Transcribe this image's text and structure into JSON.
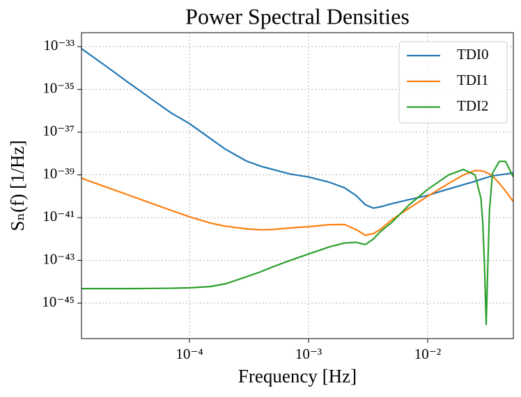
{
  "chart_data": {
    "type": "line",
    "title": "Power Spectral Densities",
    "x_label": "Frequency [Hz]",
    "y_label": "Sₙ(f) [1/Hz]",
    "x": [
      1.24e-05,
      2e-05,
      3e-05,
      5e-05,
      7e-05,
      0.0001,
      0.00015,
      0.0002,
      0.0003,
      0.0004,
      0.0005,
      0.0007,
      0.001,
      0.0015,
      0.002,
      0.0025,
      0.003,
      0.0035,
      0.004,
      0.005,
      0.007,
      0.01,
      0.015,
      0.02,
      0.025,
      0.028,
      0.029,
      0.03,
      0.031,
      0.032,
      0.033,
      0.035,
      0.04,
      0.045,
      0.0524
    ],
    "series": [
      {
        "name": "TDI0",
        "color": "#1f77b4",
        "values": [
          8e-34,
          1.2e-34,
          2.3e-35,
          3e-36,
          8e-37,
          2.5e-37,
          5e-38,
          1.6e-38,
          4.5e-39,
          2.5e-39,
          1.8e-39,
          1.1e-39,
          8e-40,
          4.5e-40,
          2.5e-40,
          1.1e-40,
          4e-41,
          2.8e-41,
          3.2e-41,
          4.5e-41,
          7e-41,
          1.1e-40,
          2.2e-40,
          3.5e-40,
          5e-40,
          6.2e-40,
          6.6e-40,
          7e-40,
          7.4e-40,
          7.8e-40,
          8.2e-40,
          9e-40,
          1e-39,
          1.1e-39,
          1.25e-39
        ]
      },
      {
        "name": "TDI1",
        "color": "#ff7f0e",
        "values": [
          7e-40,
          2.7e-40,
          1.2e-40,
          4.3e-41,
          2.2e-41,
          1.1e-41,
          5.6e-42,
          4e-42,
          3e-42,
          2.7e-42,
          2.8e-42,
          3.3e-42,
          3.8e-42,
          4.7e-42,
          4.8e-42,
          2.8e-42,
          1.5e-42,
          1.8e-42,
          2.8e-42,
          8e-42,
          2.8e-41,
          1e-40,
          4e-40,
          1e-39,
          1.6e-39,
          1.55e-39,
          1.5e-39,
          1.4e-39,
          1.3e-39,
          1.2e-39,
          1.1e-39,
          9e-40,
          4e-40,
          1.8e-40,
          5.6e-41
        ]
      },
      {
        "name": "TDI2",
        "color": "#2ca02c",
        "values": [
          4.8e-45,
          4.8e-45,
          4.8e-45,
          4.9e-45,
          5e-45,
          5.2e-45,
          6e-45,
          8e-45,
          1.7e-44,
          3e-44,
          5e-44,
          1e-43,
          2e-43,
          4.3e-43,
          6.5e-43,
          7e-43,
          5.5e-43,
          1e-42,
          2.2e-42,
          6e-42,
          4e-41,
          2.1e-40,
          1e-39,
          1.8e-39,
          1e-39,
          8e-41,
          6e-42,
          6e-44,
          1e-46,
          6e-44,
          2e-41,
          1.2e-39,
          4.3e-39,
          4.3e-39,
          8e-40
        ]
      }
    ],
    "xscale": "log",
    "yscale": "log",
    "xlim": [
      1.24e-05,
      0.0524
    ],
    "ylim": [
      2.2e-47,
      4.5e-33
    ],
    "xticks": [
      {
        "value": 0.0001,
        "label": "10⁻⁴"
      },
      {
        "value": 0.001,
        "label": "10⁻³"
      },
      {
        "value": 0.01,
        "label": "10⁻²"
      }
    ],
    "yticks": [
      {
        "value": 1e-45,
        "label": "10⁻⁴⁵"
      },
      {
        "value": 1e-43,
        "label": "10⁻⁴³"
      },
      {
        "value": 1e-41,
        "label": "10⁻⁴¹"
      },
      {
        "value": 1e-39,
        "label": "10⁻³⁹"
      },
      {
        "value": 1e-37,
        "label": "10⁻³⁷"
      },
      {
        "value": 1e-35,
        "label": "10⁻³⁵"
      },
      {
        "value": 1e-33,
        "label": "10⁻³³"
      }
    ],
    "grid": true,
    "legend": "upper right"
  }
}
